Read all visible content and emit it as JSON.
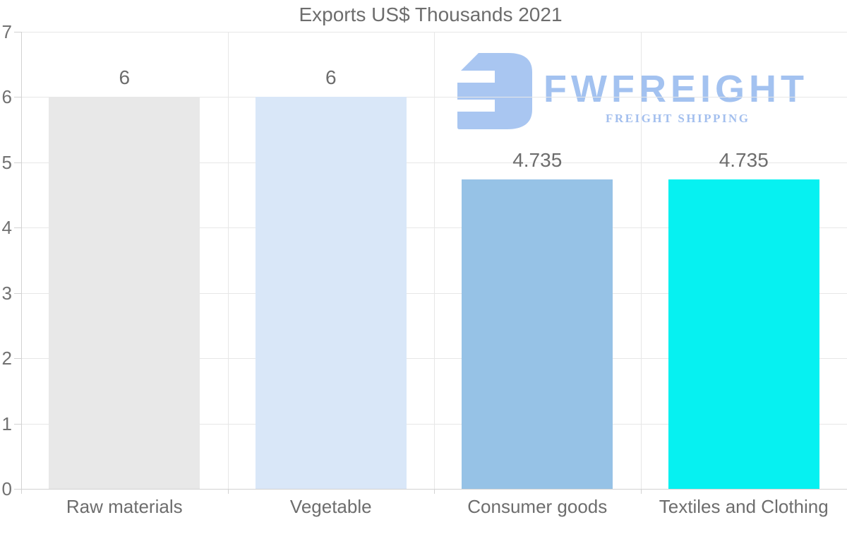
{
  "page": {
    "background": "#ffffff"
  },
  "watermark": {
    "brand": "FWFREIGHT",
    "tagline": "FREIGHT SHIPPING",
    "logo_color": "#a9c6f1",
    "brand_color": "#a3c2f0",
    "tagline_color": "#a3bfee"
  },
  "chart_data": {
    "type": "bar",
    "title": "Exports US$ Thousands 2021",
    "categories": [
      "Raw materials",
      "Vegetable",
      "Consumer goods",
      "Textiles and Clothing"
    ],
    "values": [
      6,
      6,
      4.735,
      4.735
    ],
    "value_labels": [
      "6",
      "6",
      "4.735",
      "4.735"
    ],
    "bar_colors": [
      "#e8e8e8",
      "#d9e7f8",
      "#96c2e6",
      "#06f1f1"
    ],
    "xlabel": "",
    "ylabel": "",
    "ylim": [
      0,
      7
    ],
    "yticks": [
      0,
      1,
      2,
      3,
      4,
      5,
      6,
      7
    ],
    "grid": true,
    "legend": false,
    "text_color": "#6d6d6d",
    "tick_color": "#717171",
    "grid_color": "#e7e7e7",
    "axis_color": "#d2d2d2"
  }
}
